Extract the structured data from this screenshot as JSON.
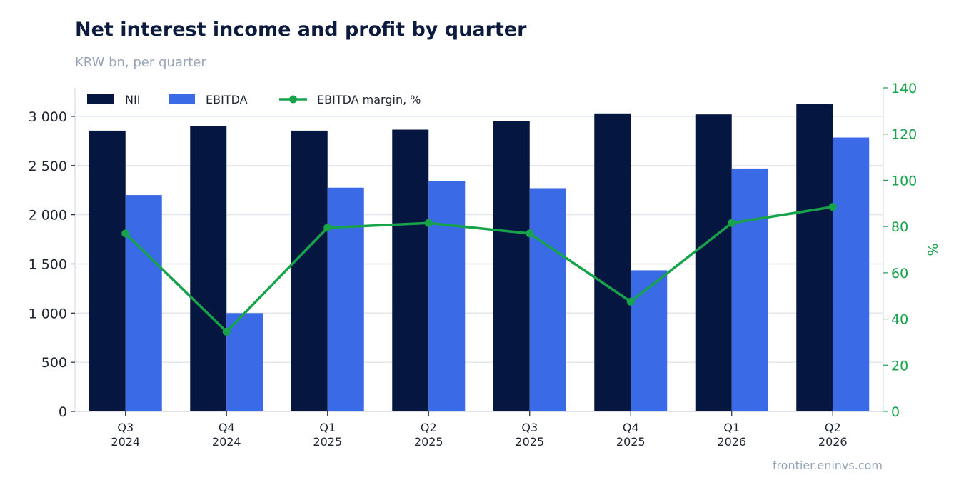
{
  "title": "Net interest income and profit by quarter",
  "subtitle": "KRW bn, per quarter",
  "source": "frontier.eninvs.com",
  "colors": {
    "nii": "#051640",
    "ebitda": "#3a6ae6",
    "margin": "#16a34a",
    "grid": "#e3e6ee",
    "axis_right": "#16a34a"
  },
  "chart_data": {
    "type": "bar",
    "categories": [
      [
        "Q3",
        "2024"
      ],
      [
        "Q4",
        "2024"
      ],
      [
        "Q1",
        "2025"
      ],
      [
        "Q2",
        "2025"
      ],
      [
        "Q3",
        "2025"
      ],
      [
        "Q4",
        "2025"
      ],
      [
        "Q1",
        "2026"
      ],
      [
        "Q2",
        "2026"
      ]
    ],
    "series": [
      {
        "name": "NII",
        "type": "bar",
        "axis": "left",
        "values": [
          2855,
          2905,
          2855,
          2865,
          2950,
          3030,
          3020,
          3130
        ]
      },
      {
        "name": "EBITDA",
        "type": "bar",
        "axis": "left",
        "values": [
          2200,
          1000,
          2275,
          2340,
          2270,
          1435,
          2470,
          2785
        ]
      },
      {
        "name": "EBITDA margin, %",
        "type": "line",
        "axis": "right",
        "values": [
          77,
          34.5,
          79.5,
          81.5,
          77,
          47.5,
          81.5,
          88.5
        ]
      }
    ],
    "y_left": {
      "label": "",
      "lim": [
        0,
        3290
      ],
      "ticks": [
        0,
        500,
        1000,
        1500,
        2000,
        2500,
        3000
      ],
      "tick_labels": [
        "0",
        "500",
        "1 000",
        "1 500",
        "2 000",
        "2 500",
        "3 000"
      ]
    },
    "y_right": {
      "label": "%",
      "lim": [
        0,
        140
      ],
      "ticks": [
        0,
        20,
        40,
        60,
        80,
        100,
        120,
        140
      ]
    },
    "grid": true,
    "legend": "top-left"
  }
}
